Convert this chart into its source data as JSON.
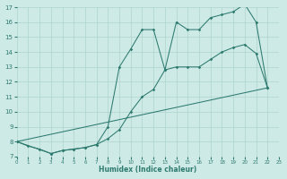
{
  "bg_color": "#ceeae7",
  "line_color": "#2d7a6e",
  "grid_color": "#aed4ce",
  "xlabel": "Humidex (Indice chaleur)",
  "xlim": [
    0,
    23
  ],
  "ylim": [
    7,
    17
  ],
  "line1_x": [
    0,
    1,
    2,
    3,
    4,
    5,
    6,
    7,
    8,
    9,
    10,
    11,
    12,
    13,
    14,
    15,
    16,
    17,
    18,
    19,
    20,
    21,
    22
  ],
  "line1_y": [
    8,
    7.7,
    7.5,
    7.2,
    7.4,
    7.5,
    7.6,
    7.8,
    9.0,
    13.0,
    14.2,
    15.5,
    15.5,
    12.8,
    16.0,
    15.5,
    15.5,
    16.3,
    16.5,
    16.7,
    17.2,
    16.0,
    11.6
  ],
  "line2_x": [
    0,
    3,
    4,
    5,
    6,
    7,
    8,
    9,
    10,
    11,
    12,
    13,
    14,
    15,
    16,
    17,
    18,
    19,
    20,
    21,
    22
  ],
  "line2_y": [
    8,
    7.2,
    7.4,
    7.5,
    7.6,
    7.8,
    8.2,
    8.8,
    10.0,
    11.0,
    11.5,
    12.8,
    13.0,
    13.0,
    13.0,
    13.5,
    14.0,
    14.3,
    14.5,
    13.9,
    11.6
  ],
  "line3_x": [
    0,
    22
  ],
  "line3_y": [
    8,
    11.6
  ]
}
